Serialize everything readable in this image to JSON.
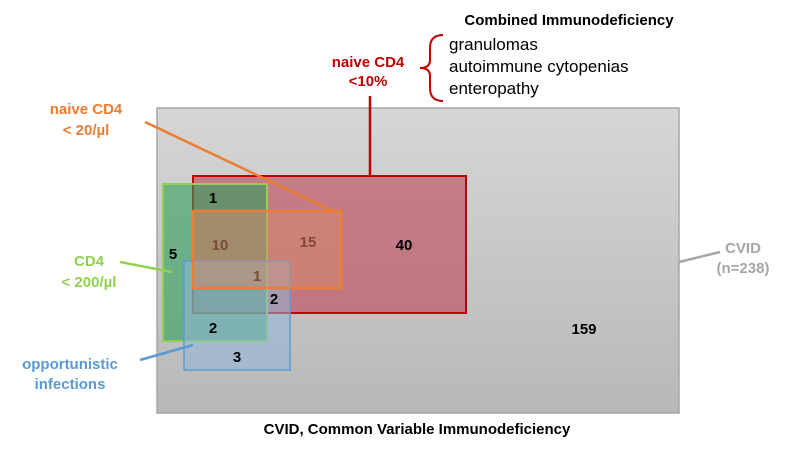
{
  "title": "Combined Immunodeficiency",
  "features": [
    "granulomas",
    "autoimmune cytopenias",
    "enteropathy"
  ],
  "footer": "CVID, Common Variable Immunodeficiency",
  "labels": {
    "naive_cd4_pct": [
      "naive CD4",
      "<10%"
    ],
    "naive_cd4_abs": [
      "naive CD4",
      "< 20/µl"
    ],
    "cd4": [
      "CD4",
      "< 200/µl"
    ],
    "infections": [
      "opportunistic",
      "infections"
    ],
    "cvid": [
      "CVID",
      "(n=238)"
    ]
  },
  "counts": {
    "cvid_only": "159",
    "naive_pct_only": "40",
    "naive_abs_in_pct": "15",
    "cd4_naive_pct_naive_abs": "10",
    "cd4_naive_pct": "1",
    "cd4_only": "5",
    "all_four": "1",
    "infections_naive_pct": "2",
    "cd4_infections": "2",
    "infections_only": "3"
  },
  "colors": {
    "cvid": "#c9c9c9",
    "naive_pct": "#c00000",
    "naive_abs": "#ed7d31",
    "cd4": "#92d050",
    "infections": "#5b9bd5"
  }
}
